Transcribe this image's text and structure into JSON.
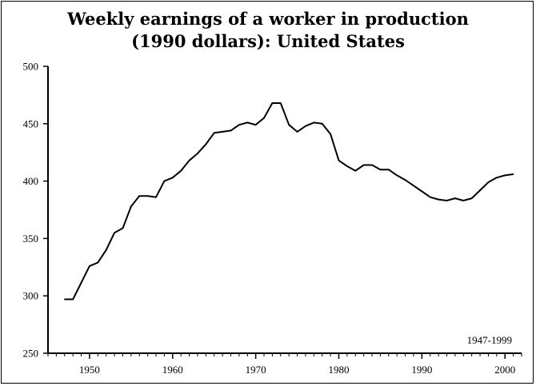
{
  "title_line1": "Weekly earnings of a worker in production",
  "title_line2": "(1990 dollars): United States",
  "chart_data": {
    "type": "line",
    "title": "Weekly earnings of a worker in production (1990 dollars): United States",
    "xlabel": "",
    "ylabel": "",
    "annotation": "1947-1999",
    "xlim": [
      1945,
      2002
    ],
    "ylim": [
      250,
      500
    ],
    "xticks": [
      1950,
      1960,
      1970,
      1980,
      1990,
      2000
    ],
    "yticks": [
      250,
      300,
      350,
      400,
      450,
      500
    ],
    "grid": false,
    "line_color": "#000000",
    "x": [
      1947,
      1948,
      1950,
      1951,
      1952,
      1953,
      1954,
      1955,
      1956,
      1957,
      1958,
      1959,
      1960,
      1961,
      1962,
      1963,
      1964,
      1965,
      1966,
      1967,
      1968,
      1969,
      1970,
      1971,
      1972,
      1973,
      1974,
      1975,
      1976,
      1977,
      1978,
      1979,
      1980,
      1981,
      1982,
      1983,
      1984,
      1985,
      1986,
      1987,
      1988,
      1989,
      1990,
      1991,
      1992,
      1993,
      1994,
      1995,
      1996,
      1997,
      1998,
      1999,
      2000,
      2001
    ],
    "values": [
      297,
      297,
      326,
      329,
      340,
      355,
      359,
      378,
      387,
      387,
      386,
      400,
      403,
      409,
      418,
      424,
      432,
      442,
      443,
      444,
      449,
      451,
      449,
      455,
      468,
      468,
      449,
      443,
      448,
      451,
      450,
      441,
      418,
      413,
      409,
      414,
      414,
      410,
      410,
      405,
      401,
      396,
      391,
      386,
      384,
      383,
      385,
      383,
      385,
      392,
      399,
      403,
      405,
      406
    ]
  }
}
